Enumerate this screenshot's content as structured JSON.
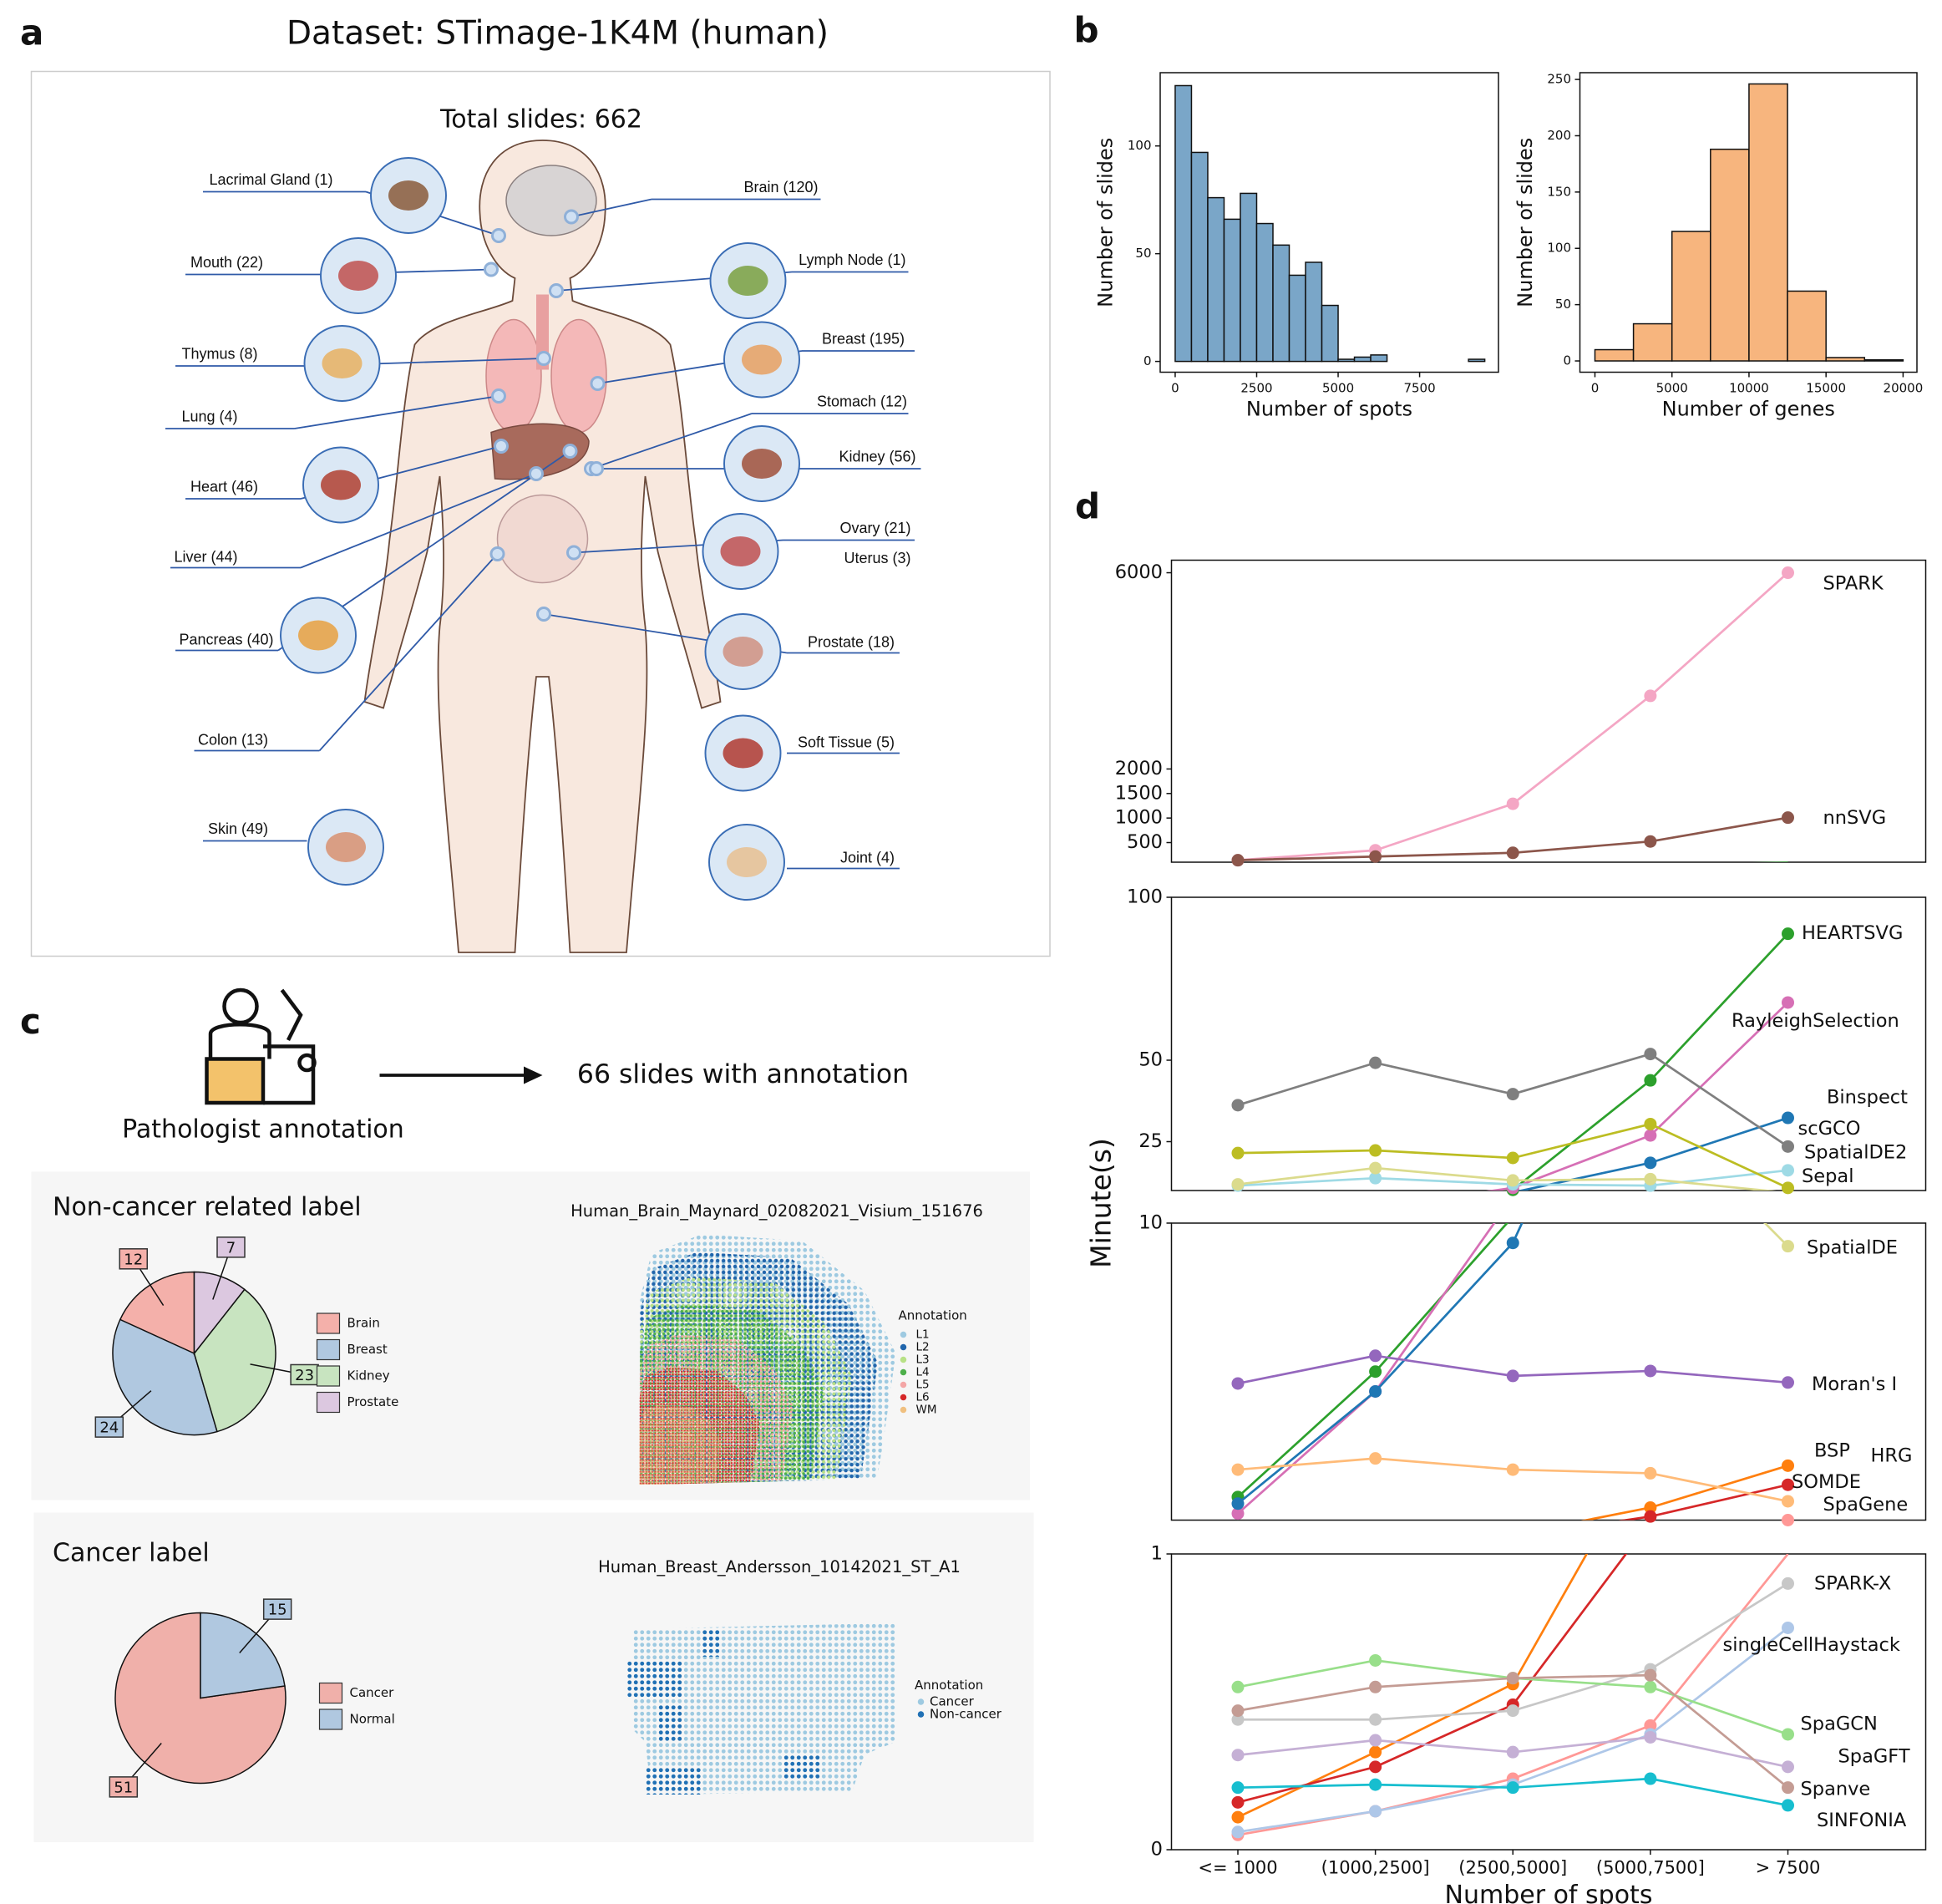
{
  "panel_labels": [
    "a",
    "b",
    "c",
    "d"
  ],
  "anatomy": {
    "title": "Dataset: STimage-1K4M (human)",
    "total": "Total slides: 662",
    "organs": [
      "Lacrimal Gland (1)",
      "Mouth (22)",
      "Thymus (8)",
      "Lung (4)",
      "Heart (46)",
      "Liver (44)",
      "Pancreas (40)",
      "Colon (13)",
      "Skin (49)",
      "Brain (120)",
      "Lymph Node (1)",
      "Breast (195)",
      "Stomach (12)",
      "Kidney (56)",
      "Ovary (21)",
      "Uterus (3)",
      "Prostate (18)",
      "Soft Tissue (5)",
      "Joint (4)"
    ]
  },
  "annotation": {
    "source": "Pathologist annotation",
    "result": "66 slides with annotation",
    "non_cancer": {
      "title": "Non-cancer related label",
      "sample": "Human_Brain_Maynard_02082021_Visium_151676",
      "legend_title": "Annotation",
      "legend": [
        {
          "name": "L1",
          "color": "#9ecae1"
        },
        {
          "name": "L2",
          "color": "#2166ac"
        },
        {
          "name": "L3",
          "color": "#b8e186"
        },
        {
          "name": "L4",
          "color": "#4daf4a"
        },
        {
          "name": "L5",
          "color": "#f4a6a6"
        },
        {
          "name": "L6",
          "color": "#d62728"
        },
        {
          "name": "WM",
          "color": "#f0c080"
        }
      ]
    },
    "cancer": {
      "title": "Cancer label",
      "sample": "Human_Breast_Andersson_10142021_ST_A1",
      "legend_title": "Annotation",
      "legend": [
        {
          "name": "Cancer",
          "color": "#9ecae1"
        },
        {
          "name": "Non-cancer",
          "color": "#2171b5"
        }
      ]
    }
  },
  "chart_data": [
    {
      "type": "histogram",
      "xlabel": "Number of spots",
      "ylabel": "Number of slides",
      "color": "#7aa6c8",
      "bins": [
        0,
        500,
        1000,
        1500,
        2000,
        2500,
        3000,
        3500,
        4000,
        4500,
        5000,
        5500,
        6000,
        6500,
        7000,
        7500,
        8000,
        8500,
        9000,
        9500
      ],
      "values": [
        128,
        97,
        76,
        66,
        78,
        64,
        54,
        40,
        46,
        26,
        1,
        2,
        3,
        0,
        0,
        0,
        0,
        0,
        1
      ],
      "xlim": [
        -460,
        9920
      ],
      "ylim": [
        -5,
        134
      ],
      "xticks": [
        0,
        2500,
        5000,
        7500
      ],
      "yticks": [
        0,
        50,
        100
      ]
    },
    {
      "type": "histogram",
      "xlabel": "Number of genes",
      "ylabel": "Number of slides",
      "color": "#f7b57e",
      "bins": [
        0,
        2500,
        5000,
        7500,
        10000,
        12500,
        15000,
        17500,
        20000
      ],
      "values": [
        10,
        33,
        115,
        188,
        246,
        62,
        3,
        1
      ],
      "xlim": [
        -975,
        20900
      ],
      "ylim": [
        -10,
        256
      ],
      "xticks": [
        0,
        5000,
        10000,
        15000,
        20000
      ],
      "yticks": [
        0,
        50,
        100,
        150,
        200,
        250
      ]
    },
    {
      "type": "line",
      "xlabel": "Number of spots",
      "ylabel": "Minute(s)",
      "categories": [
        "<= 1000",
        "(1000,2500]",
        "(2500,5000]",
        "(5000,7500]",
        "> 7500"
      ],
      "panels": [
        {
          "ylim": [
            100,
            6256
          ],
          "yticks": [
            500,
            1000,
            1500,
            2000,
            6000
          ]
        },
        {
          "ylim": [
            10,
            100
          ],
          "yticks": [
            25,
            50,
            100
          ]
        },
        {
          "ylim": [
            1,
            10
          ],
          "yticks": [
            10
          ]
        },
        {
          "ylim": [
            0,
            1
          ],
          "yticks": [
            0,
            1
          ]
        }
      ],
      "series": [
        {
          "name": "SPARK",
          "color": "#f4a6c4",
          "values": [
            140,
            343,
            1290,
            3490,
            6000
          ]
        },
        {
          "name": "nnSVG",
          "color": "#8c564b",
          "values": [
            140,
            215,
            291,
            522,
            1008
          ]
        },
        {
          "name": "HEARTSVG",
          "color": "#2ca02c",
          "values": [
            1.7,
            5.5,
            10.2,
            43.8,
            88.8
          ]
        },
        {
          "name": "RayleighSelection",
          "color": "#d66fb5",
          "values": [
            1.2,
            4.9,
            10.8,
            26.9,
            67.7
          ]
        },
        {
          "name": "Binspect",
          "color": "#1f77b4",
          "values": [
            1.5,
            4.9,
            9.4,
            18.5,
            32.3
          ]
        },
        {
          "name": "scGCO",
          "color": "#7f7f7f",
          "values": [
            36.2,
            49.2,
            39.6,
            51.9,
            23.5
          ]
        },
        {
          "name": "SpatialDE2",
          "color": "#9edae5",
          "values": [
            11.5,
            13.8,
            11.9,
            11.5,
            16.2
          ]
        },
        {
          "name": "Sepal",
          "color": "#bcbd22",
          "values": [
            21.5,
            22.3,
            20,
            30.4,
            10.8
          ]
        },
        {
          "name": "SpatialDE",
          "color": "#dbdb8d",
          "values": [
            11.9,
            16.9,
            13.1,
            13.5,
            9.3
          ]
        },
        {
          "name": "Moran's I",
          "color": "#9467bd",
          "values": [
            5.14,
            5.98,
            5.37,
            5.52,
            5.17
          ]
        },
        {
          "name": "BSP",
          "color": "#ff7f0e",
          "values": [
            0.11,
            0.33,
            0.56,
            1.38,
            2.65
          ]
        },
        {
          "name": "HRG",
          "color": "#d62728",
          "values": [
            0.16,
            0.28,
            0.49,
            1.11,
            2.07
          ]
        },
        {
          "name": "SOMDE",
          "color": "#ffbb78",
          "values": [
            2.53,
            2.87,
            2.53,
            2.42,
            1.57
          ]
        },
        {
          "name": "SpaGene",
          "color": "#ff9896",
          "values": [
            0.05,
            0.13,
            0.24,
            0.42,
            1.0
          ]
        },
        {
          "name": "SPARK-X",
          "color": "#c7c7c7",
          "values": [
            0.44,
            0.44,
            0.47,
            0.61,
            0.9
          ]
        },
        {
          "name": "singleCellHaystack",
          "color": "#aec7e8",
          "values": [
            0.06,
            0.13,
            0.22,
            0.39,
            0.75
          ]
        },
        {
          "name": "SpaGCN",
          "color": "#98df8a",
          "values": [
            0.55,
            0.64,
            0.58,
            0.55,
            0.39
          ]
        },
        {
          "name": "SpaGFT",
          "color": "#c5b0d5",
          "values": [
            0.32,
            0.37,
            0.33,
            0.38,
            0.28
          ]
        },
        {
          "name": "Spanve",
          "color": "#c49c94",
          "values": [
            0.47,
            0.55,
            0.58,
            0.59,
            0.21
          ]
        },
        {
          "name": "SINFONIA",
          "color": "#17becf",
          "values": [
            0.21,
            0.22,
            0.21,
            0.24,
            0.15
          ]
        }
      ]
    },
    {
      "type": "pie",
      "categories": [
        "Brain",
        "Breast",
        "Kidney",
        "Prostate"
      ],
      "values": [
        12,
        24,
        23,
        7
      ],
      "colors": [
        "#f4b0aa",
        "#b0c8e0",
        "#c8e4c0",
        "#dcc8e0"
      ]
    },
    {
      "type": "pie",
      "categories": [
        "Cancer",
        "Normal"
      ],
      "values": [
        51,
        15
      ],
      "colors": [
        "#f0b0aa",
        "#b0c8e0"
      ]
    }
  ]
}
